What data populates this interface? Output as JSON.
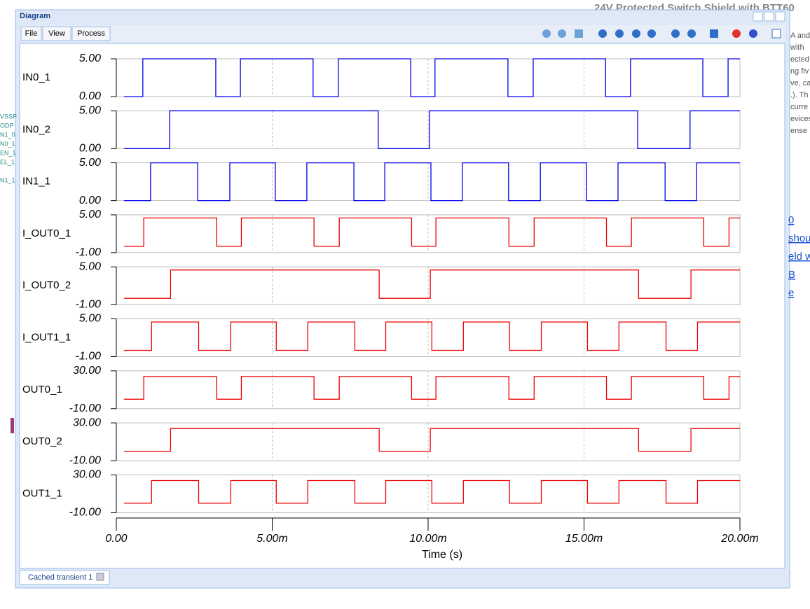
{
  "background": {
    "heading": "24V Protected Switch Shield with BTT60",
    "right_text": [
      "A and",
      "with",
      "ected",
      "ng fiv",
      "ve, ca",
      ".). Th",
      "curre",
      "evices",
      "ense"
    ],
    "left_text": [
      "VSSP",
      "ODP",
      "N1_0",
      "N0_1",
      "EN_1",
      "EL_1",
      "N1_1"
    ],
    "links": [
      "0",
      "shou",
      "eld w",
      "B",
      "e"
    ]
  },
  "window": {
    "title": "Diagram",
    "menu": [
      "File",
      "View",
      "Process"
    ],
    "tab": "Cached transient 1"
  },
  "chart_data": [
    {
      "type": "line",
      "title": "IN0_1",
      "color": "#0000ee",
      "xlim": [
        0,
        0.02
      ],
      "ylim": [
        0,
        5
      ],
      "yticks": [
        {
          "value": 0,
          "label": "0.00"
        },
        {
          "value": 5,
          "label": "5.00"
        }
      ],
      "x": [
        0.00025,
        0.00085,
        0.00085,
        0.00319,
        0.00319,
        0.00398,
        0.00398,
        0.00631,
        0.00631,
        0.00712,
        0.00712,
        0.00944,
        0.00944,
        0.01022,
        0.01022,
        0.01256,
        0.01256,
        0.01337,
        0.01337,
        0.01569,
        0.01569,
        0.01649,
        0.01649,
        0.01881,
        0.01881,
        0.01962,
        0.01962,
        0.02
      ],
      "values": [
        0,
        0,
        5,
        5,
        0,
        0,
        5,
        5,
        0,
        0,
        5,
        5,
        0,
        0,
        5,
        5,
        0,
        0,
        5,
        5,
        0,
        0,
        5,
        5,
        0,
        0,
        5,
        5
      ]
    },
    {
      "type": "line",
      "title": "IN0_2",
      "color": "#0000ee",
      "xlim": [
        0,
        0.02
      ],
      "ylim": [
        0,
        5
      ],
      "yticks": [
        {
          "value": 0,
          "label": "0.00"
        },
        {
          "value": 5,
          "label": "5.00"
        }
      ],
      "x": [
        0.00025,
        0.00171,
        0.00171,
        0.0084,
        0.0084,
        0.01004,
        0.01004,
        0.01672,
        0.01672,
        0.0184,
        0.0184,
        0.02
      ],
      "values": [
        0,
        0,
        5,
        5,
        0,
        0,
        5,
        5,
        0,
        0,
        5,
        5
      ]
    },
    {
      "type": "line",
      "title": "IN1_1",
      "color": "#0000ee",
      "xlim": [
        0,
        0.02
      ],
      "ylim": [
        0,
        5
      ],
      "yticks": [
        {
          "value": 0,
          "label": "0.00"
        },
        {
          "value": 5,
          "label": "5.00"
        }
      ],
      "x": [
        0.00025,
        0.0011,
        0.0011,
        0.00261,
        0.00261,
        0.00364,
        0.00364,
        0.0051,
        0.0051,
        0.00611,
        0.00611,
        0.00762,
        0.00762,
        0.00861,
        0.00861,
        0.01009,
        0.01009,
        0.0111,
        0.0111,
        0.01258,
        0.01258,
        0.0136,
        0.0136,
        0.01508,
        0.01508,
        0.01609,
        0.01609,
        0.0176,
        0.0176,
        0.01861,
        0.01861,
        0.02
      ],
      "values": [
        0,
        0,
        5,
        5,
        0,
        0,
        5,
        5,
        0,
        0,
        5,
        5,
        0,
        0,
        5,
        5,
        0,
        0,
        5,
        5,
        0,
        0,
        5,
        5,
        0,
        0,
        5,
        5,
        0,
        0,
        5,
        5
      ]
    },
    {
      "type": "line",
      "title": "I_OUT0_1",
      "color": "#ee0000",
      "xlim": [
        0,
        0.02
      ],
      "ylim": [
        -1,
        5
      ],
      "yticks": [
        {
          "value": -1,
          "label": "-1.00"
        },
        {
          "value": 5,
          "label": "5.00"
        }
      ],
      "x": [
        0.00025,
        0.00088,
        0.00088,
        0.00322,
        0.00322,
        0.00401,
        0.00401,
        0.00634,
        0.00634,
        0.00715,
        0.00715,
        0.00947,
        0.00947,
        0.01025,
        0.01025,
        0.01259,
        0.01259,
        0.0134,
        0.0134,
        0.01572,
        0.01572,
        0.01652,
        0.01652,
        0.01884,
        0.01884,
        0.01965,
        0.01965,
        0.02
      ],
      "values": [
        0,
        0,
        4.5,
        4.5,
        0,
        0,
        4.5,
        4.5,
        0,
        0,
        4.5,
        4.5,
        0,
        0,
        4.5,
        4.5,
        0,
        0,
        4.5,
        4.5,
        0,
        0,
        4.5,
        4.5,
        0,
        0,
        4.5,
        4.5
      ]
    },
    {
      "type": "line",
      "title": "I_OUT0_2",
      "color": "#ee0000",
      "xlim": [
        0,
        0.02
      ],
      "ylim": [
        -1,
        5
      ],
      "yticks": [
        {
          "value": -1,
          "label": "-1.00"
        },
        {
          "value": 5,
          "label": "5.00"
        }
      ],
      "x": [
        0.00025,
        0.00174,
        0.00174,
        0.00843,
        0.00843,
        0.01007,
        0.01007,
        0.01675,
        0.01675,
        0.01843,
        0.01843,
        0.02
      ],
      "values": [
        0,
        0,
        4.5,
        4.5,
        0,
        0,
        4.5,
        4.5,
        0,
        0,
        4.5,
        4.5
      ]
    },
    {
      "type": "line",
      "title": "I_OUT1_1",
      "color": "#ee0000",
      "xlim": [
        0,
        0.02
      ],
      "ylim": [
        -1,
        5
      ],
      "yticks": [
        {
          "value": -1,
          "label": "-1.00"
        },
        {
          "value": 5,
          "label": "5.00"
        }
      ],
      "x": [
        0.00025,
        0.00113,
        0.00113,
        0.00264,
        0.00264,
        0.00367,
        0.00367,
        0.00513,
        0.00513,
        0.00614,
        0.00614,
        0.00765,
        0.00765,
        0.00864,
        0.00864,
        0.01012,
        0.01012,
        0.01113,
        0.01113,
        0.01261,
        0.01261,
        0.01363,
        0.01363,
        0.01511,
        0.01511,
        0.01612,
        0.01612,
        0.01763,
        0.01763,
        0.01864,
        0.01864,
        0.02
      ],
      "values": [
        0,
        0,
        4.5,
        4.5,
        0,
        0,
        4.5,
        4.5,
        0,
        0,
        4.5,
        4.5,
        0,
        0,
        4.5,
        4.5,
        0,
        0,
        4.5,
        4.5,
        0,
        0,
        4.5,
        4.5,
        0,
        0,
        4.5,
        4.5,
        0,
        0,
        4.5,
        4.5
      ]
    },
    {
      "type": "line",
      "title": "OUT0_1",
      "color": "#ee0000",
      "xlim": [
        0,
        0.02
      ],
      "ylim": [
        -10,
        30
      ],
      "yticks": [
        {
          "value": -10,
          "label": "-10.00"
        },
        {
          "value": 30,
          "label": "30.00"
        }
      ],
      "x": [
        0.00025,
        0.00088,
        0.00088,
        0.00322,
        0.00322,
        0.00401,
        0.00401,
        0.00634,
        0.00634,
        0.00715,
        0.00715,
        0.00947,
        0.00947,
        0.01025,
        0.01025,
        0.01259,
        0.01259,
        0.0134,
        0.0134,
        0.01572,
        0.01572,
        0.01652,
        0.01652,
        0.01884,
        0.01884,
        0.01965,
        0.01965,
        0.02
      ],
      "values": [
        0,
        0,
        24,
        24,
        0,
        0,
        24,
        24,
        0,
        0,
        24,
        24,
        0,
        0,
        24,
        24,
        0,
        0,
        24,
        24,
        0,
        0,
        24,
        24,
        0,
        0,
        24,
        24
      ]
    },
    {
      "type": "line",
      "title": "OUT0_2",
      "color": "#ee0000",
      "xlim": [
        0,
        0.02
      ],
      "ylim": [
        -10,
        30
      ],
      "yticks": [
        {
          "value": -10,
          "label": "-10.00"
        },
        {
          "value": 30,
          "label": "30.00"
        }
      ],
      "x": [
        0.00025,
        0.00174,
        0.00174,
        0.00843,
        0.00843,
        0.01007,
        0.01007,
        0.01675,
        0.01675,
        0.01843,
        0.01843,
        0.02
      ],
      "values": [
        0,
        0,
        24,
        24,
        0,
        0,
        24,
        24,
        0,
        0,
        24,
        24
      ]
    },
    {
      "type": "line",
      "title": "OUT1_1",
      "color": "#ee0000",
      "xlim": [
        0,
        0.02
      ],
      "ylim": [
        -10,
        30
      ],
      "yticks": [
        {
          "value": -10,
          "label": "-10.00"
        },
        {
          "value": 30,
          "label": "30.00"
        }
      ],
      "xlabel": "Time (s)",
      "xticks": [
        {
          "value": 0,
          "label": "0.00"
        },
        {
          "value": 0.005,
          "label": "5.00m"
        },
        {
          "value": 0.01,
          "label": "10.00m"
        },
        {
          "value": 0.015,
          "label": "15.00m"
        },
        {
          "value": 0.02,
          "label": "20.00m"
        }
      ],
      "x": [
        0.00025,
        0.00113,
        0.00113,
        0.00264,
        0.00264,
        0.00367,
        0.00367,
        0.00513,
        0.00513,
        0.00614,
        0.00614,
        0.00765,
        0.00765,
        0.00864,
        0.00864,
        0.01012,
        0.01012,
        0.01113,
        0.01113,
        0.01261,
        0.01261,
        0.01363,
        0.01363,
        0.01511,
        0.01511,
        0.01612,
        0.01612,
        0.01763,
        0.01763,
        0.01864,
        0.01864,
        0.02
      ],
      "values": [
        0,
        0,
        24,
        24,
        0,
        0,
        24,
        24,
        0,
        0,
        24,
        24,
        0,
        0,
        24,
        24,
        0,
        0,
        24,
        24,
        0,
        0,
        24,
        24,
        0,
        0,
        24,
        24,
        0,
        0,
        24,
        24
      ]
    }
  ]
}
